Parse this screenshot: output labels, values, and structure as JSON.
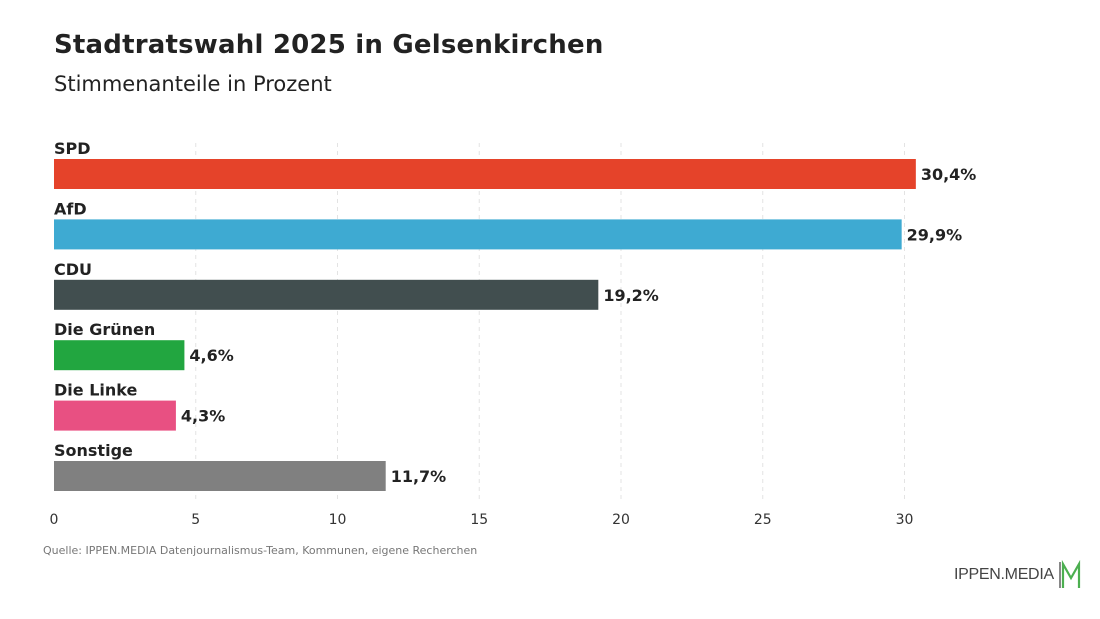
{
  "title": "Stadtratswahl 2025 in Gelsenkirchen",
  "subtitle": "Stimmenanteile in Prozent",
  "source": "Quelle: IPPEN.MEDIA Datenjournalismus-Team, Kommunen, eigene Recherchen",
  "logo": {
    "text": "IPPEN.MEDIA",
    "mark_color": "#4caf50"
  },
  "chart_data": {
    "type": "bar",
    "orientation": "horizontal",
    "title": "Stadtratswahl 2025 in Gelsenkirchen",
    "subtitle": "Stimmenanteile in Prozent",
    "categories": [
      "SPD",
      "AfD",
      "CDU",
      "Die Grünen",
      "Die Linke",
      "Sonstige"
    ],
    "values": [
      30.4,
      29.9,
      19.2,
      4.6,
      4.3,
      11.7
    ],
    "value_labels": [
      "30,4%",
      "29,9%",
      "19,2%",
      "4,6%",
      "4,3%",
      "11,7%"
    ],
    "colors": [
      "#e5432a",
      "#3eaad2",
      "#414e4f",
      "#22a640",
      "#e85082",
      "#808080"
    ],
    "x_ticks": [
      0,
      5,
      10,
      15,
      20,
      25,
      30
    ],
    "x_tick_labels": [
      "0",
      "5",
      "10",
      "15",
      "20",
      "25",
      "30"
    ],
    "xlim": [
      0,
      30.4
    ],
    "grid": true,
    "grid_style": "dashed vertical"
  }
}
